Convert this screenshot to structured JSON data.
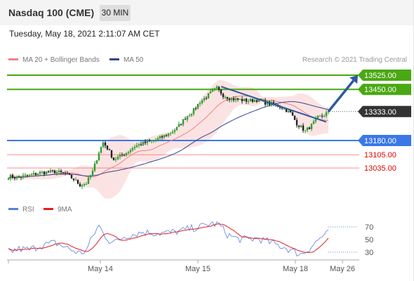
{
  "header": {
    "title": "Nasdaq 100 (CME)",
    "timeframe_label": "30 MIN",
    "timestamp": "Tuesday, May 18, 2021 2:11:07 AM CET"
  },
  "legend": {
    "ma20_label": "MA 20 + Bollinger Bands",
    "ma50_label": "MA 50",
    "rsi_label": "RSI",
    "rsi_ma_label": "9MA",
    "copyright": "Research © 2021 Trading Central"
  },
  "colors": {
    "bull": "#2e9e2e",
    "bear": "#222222",
    "ma20": "#f08080",
    "ma50": "#34468c",
    "band": "#fbdada",
    "resistance": "#4aa812",
    "support": "#3a78e8",
    "minor_support": "#ff7070",
    "current": "#333333",
    "trend": "#2c5aa0",
    "rsi": "#5b7fe0",
    "rsi_ma": "#e02020"
  },
  "chart_data": [
    {
      "type": "line",
      "name": "price-chart",
      "x_ticks": [
        "May 14",
        "May 15",
        "May 18",
        "May 26"
      ],
      "price_levels": [
        {
          "value": "13525.00",
          "kind": "resistance"
        },
        {
          "value": "13450.00",
          "kind": "resistance"
        },
        {
          "value": "13333.00",
          "kind": "current"
        },
        {
          "value": "13180.00",
          "kind": "support"
        },
        {
          "value": "13105.00",
          "kind": "minor_support"
        },
        {
          "value": "13035.00",
          "kind": "minor_support"
        }
      ],
      "close_anchors": [
        [
          0,
          12990
        ],
        [
          4,
          12985
        ],
        [
          10,
          12995
        ],
        [
          15,
          13010
        ],
        [
          22,
          13015
        ],
        [
          27,
          13005
        ],
        [
          31,
          12975
        ],
        [
          34,
          12945
        ],
        [
          37,
          12955
        ],
        [
          40,
          13015
        ],
        [
          43,
          13120
        ],
        [
          45,
          13170
        ],
        [
          47,
          13140
        ],
        [
          50,
          13080
        ],
        [
          52,
          13090
        ],
        [
          56,
          13115
        ],
        [
          60,
          13150
        ],
        [
          64,
          13165
        ],
        [
          70,
          13182
        ],
        [
          76,
          13215
        ],
        [
          80,
          13245
        ],
        [
          84,
          13300
        ],
        [
          88,
          13340
        ],
        [
          91,
          13385
        ],
        [
          94,
          13410
        ],
        [
          97,
          13440
        ],
        [
          99,
          13455
        ],
        [
          102,
          13420
        ],
        [
          106,
          13400
        ],
        [
          110,
          13395
        ],
        [
          114,
          13390
        ],
        [
          118,
          13395
        ],
        [
          122,
          13380
        ],
        [
          126,
          13370
        ],
        [
          130,
          13355
        ],
        [
          134,
          13325
        ],
        [
          137,
          13270
        ],
        [
          139,
          13250
        ],
        [
          141,
          13230
        ],
        [
          144,
          13260
        ],
        [
          147,
          13300
        ],
        [
          150,
          13315
        ],
        [
          152,
          13333
        ]
      ],
      "forecast_path": [
        [
          152,
          13333
        ],
        [
          166,
          13525
        ]
      ],
      "trend_line": [
        [
          101,
          13465
        ],
        [
          151,
          13278
        ]
      ]
    },
    {
      "type": "line",
      "name": "rsi-chart",
      "y_ticks": [
        70,
        50,
        30
      ],
      "rsi_anchors": [
        [
          0,
          30
        ],
        [
          5,
          35
        ],
        [
          10,
          34
        ],
        [
          15,
          40
        ],
        [
          22,
          45
        ],
        [
          27,
          38
        ],
        [
          31,
          32
        ],
        [
          34,
          28
        ],
        [
          37,
          33
        ],
        [
          40,
          55
        ],
        [
          43,
          72
        ],
        [
          45,
          60
        ],
        [
          48,
          48
        ],
        [
          51,
          46
        ],
        [
          55,
          55
        ],
        [
          59,
          58
        ],
        [
          64,
          62
        ],
        [
          70,
          60
        ],
        [
          76,
          61
        ],
        [
          81,
          63
        ],
        [
          86,
          67
        ],
        [
          91,
          70
        ],
        [
          96,
          75
        ],
        [
          100,
          74
        ],
        [
          104,
          58
        ],
        [
          109,
          51
        ],
        [
          114,
          50
        ],
        [
          118,
          52
        ],
        [
          123,
          47
        ],
        [
          127,
          42
        ],
        [
          131,
          38
        ],
        [
          136,
          30
        ],
        [
          139,
          27
        ],
        [
          142,
          33
        ],
        [
          146,
          46
        ],
        [
          149,
          55
        ],
        [
          152,
          60
        ]
      ]
    }
  ]
}
